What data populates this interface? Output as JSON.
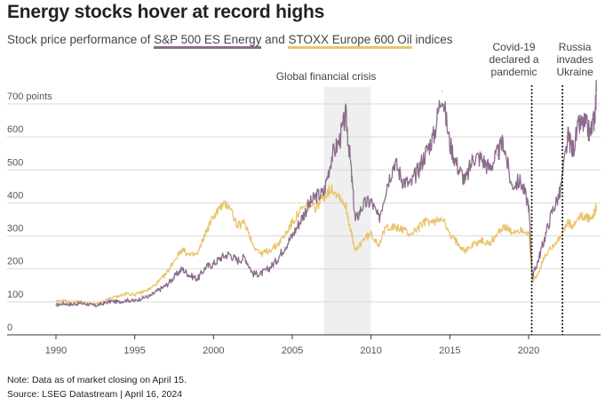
{
  "title": "Energy stocks hover at record highs",
  "subtitle": {
    "prefix": "Stock price performance of ",
    "series1": "S&P 500 ES Energy",
    "middle": " and ",
    "series2": "STOXX Europe 600 Oil",
    "suffix": " indices"
  },
  "colors": {
    "series1": "#8b6c8c",
    "series2": "#e9c46a",
    "shade": "#efefef",
    "grid": "#d9d9d9",
    "axis": "#333333"
  },
  "footer": {
    "note": "Note: Data as of market closing on April 15.",
    "source": "Source: LSEG Datastream | April 16, 2024"
  },
  "chart_data": {
    "type": "line",
    "title": "Energy stocks hover at record highs",
    "xlabel": "",
    "ylabel": "points",
    "xlim": [
      1989,
      2024.6
    ],
    "ylim": [
      0,
      700
    ],
    "grid": true,
    "y_ticks": [
      {
        "value": 0,
        "label": "0"
      },
      {
        "value": 100,
        "label": "100"
      },
      {
        "value": 200,
        "label": "200"
      },
      {
        "value": 300,
        "label": "300"
      },
      {
        "value": 400,
        "label": "400"
      },
      {
        "value": 500,
        "label": "500"
      },
      {
        "value": 600,
        "label": "600"
      },
      {
        "value": 700,
        "label": "700 points"
      }
    ],
    "x_ticks": [
      {
        "value": 1990,
        "label": "1990"
      },
      {
        "value": 1995,
        "label": "1995"
      },
      {
        "value": 2000,
        "label": "2000"
      },
      {
        "value": 2005,
        "label": "2005"
      },
      {
        "value": 2010,
        "label": "2010"
      },
      {
        "value": 2015,
        "label": "2015"
      },
      {
        "value": 2020,
        "label": "2020"
      }
    ],
    "series": [
      {
        "name": "S&P 500 ES Energy",
        "points": [
          [
            1990.0,
            90
          ],
          [
            1990.5,
            95
          ],
          [
            1991.0,
            92
          ],
          [
            1991.5,
            96
          ],
          [
            1992.0,
            93
          ],
          [
            1992.5,
            88
          ],
          [
            1993.0,
            95
          ],
          [
            1993.5,
            102
          ],
          [
            1994.0,
            100
          ],
          [
            1994.5,
            105
          ],
          [
            1995.0,
            103
          ],
          [
            1995.5,
            112
          ],
          [
            1996.0,
            118
          ],
          [
            1996.5,
            135
          ],
          [
            1997.0,
            150
          ],
          [
            1997.5,
            175
          ],
          [
            1998.0,
            200
          ],
          [
            1998.5,
            180
          ],
          [
            1999.0,
            170
          ],
          [
            1999.5,
            205
          ],
          [
            2000.0,
            215
          ],
          [
            2000.5,
            235
          ],
          [
            2001.0,
            245
          ],
          [
            2001.5,
            225
          ],
          [
            2002.0,
            235
          ],
          [
            2002.5,
            185
          ],
          [
            2003.0,
            185
          ],
          [
            2003.5,
            200
          ],
          [
            2004.0,
            225
          ],
          [
            2004.5,
            265
          ],
          [
            2005.0,
            300
          ],
          [
            2005.5,
            345
          ],
          [
            2006.0,
            390
          ],
          [
            2006.5,
            420
          ],
          [
            2007.0,
            430
          ],
          [
            2007.5,
            540
          ],
          [
            2008.0,
            590
          ],
          [
            2008.4,
            665
          ],
          [
            2008.7,
            520
          ],
          [
            2009.0,
            345
          ],
          [
            2009.5,
            395
          ],
          [
            2010.0,
            405
          ],
          [
            2010.5,
            350
          ],
          [
            2011.0,
            455
          ],
          [
            2011.5,
            525
          ],
          [
            2012.0,
            470
          ],
          [
            2012.5,
            455
          ],
          [
            2013.0,
            500
          ],
          [
            2013.5,
            555
          ],
          [
            2014.0,
            605
          ],
          [
            2014.5,
            738
          ],
          [
            2015.0,
            580
          ],
          [
            2015.5,
            510
          ],
          [
            2016.0,
            465
          ],
          [
            2016.5,
            540
          ],
          [
            2017.0,
            535
          ],
          [
            2017.5,
            505
          ],
          [
            2018.0,
            545
          ],
          [
            2018.4,
            585
          ],
          [
            2018.9,
            455
          ],
          [
            2019.5,
            465
          ],
          [
            2020.0,
            395
          ],
          [
            2020.25,
            175
          ],
          [
            2020.6,
            225
          ],
          [
            2021.0,
            290
          ],
          [
            2021.5,
            375
          ],
          [
            2022.0,
            430
          ],
          [
            2022.5,
            600
          ],
          [
            2022.8,
            560
          ],
          [
            2023.2,
            635
          ],
          [
            2023.6,
            640
          ],
          [
            2023.9,
            610
          ],
          [
            2024.2,
            660
          ],
          [
            2024.3,
            740
          ]
        ]
      },
      {
        "name": "STOXX Europe 600 Oil",
        "points": [
          [
            1990.0,
            100
          ],
          [
            1990.5,
            104
          ],
          [
            1991.0,
            98
          ],
          [
            1991.5,
            102
          ],
          [
            1992.0,
            96
          ],
          [
            1992.5,
            92
          ],
          [
            1993.0,
            100
          ],
          [
            1993.5,
            112
          ],
          [
            1994.0,
            118
          ],
          [
            1994.5,
            125
          ],
          [
            1995.0,
            122
          ],
          [
            1995.5,
            130
          ],
          [
            1996.0,
            140
          ],
          [
            1996.5,
            160
          ],
          [
            1997.0,
            185
          ],
          [
            1997.5,
            225
          ],
          [
            1998.0,
            260
          ],
          [
            1998.5,
            240
          ],
          [
            1999.0,
            245
          ],
          [
            1999.5,
            310
          ],
          [
            2000.0,
            360
          ],
          [
            2000.5,
            390
          ],
          [
            2001.0,
            395
          ],
          [
            2001.5,
            330
          ],
          [
            2002.0,
            340
          ],
          [
            2002.5,
            275
          ],
          [
            2003.0,
            245
          ],
          [
            2003.5,
            255
          ],
          [
            2004.0,
            270
          ],
          [
            2004.5,
            300
          ],
          [
            2005.0,
            340
          ],
          [
            2005.5,
            375
          ],
          [
            2006.0,
            395
          ],
          [
            2006.5,
            385
          ],
          [
            2007.0,
            420
          ],
          [
            2007.5,
            445
          ],
          [
            2008.0,
            420
          ],
          [
            2008.4,
            390
          ],
          [
            2008.7,
            320
          ],
          [
            2009.0,
            250
          ],
          [
            2009.5,
            290
          ],
          [
            2010.0,
            305
          ],
          [
            2010.5,
            275
          ],
          [
            2011.0,
            330
          ],
          [
            2011.5,
            325
          ],
          [
            2012.0,
            320
          ],
          [
            2012.5,
            305
          ],
          [
            2013.0,
            325
          ],
          [
            2013.5,
            345
          ],
          [
            2014.0,
            340
          ],
          [
            2014.5,
            360
          ],
          [
            2015.0,
            300
          ],
          [
            2015.5,
            280
          ],
          [
            2016.0,
            255
          ],
          [
            2016.5,
            275
          ],
          [
            2017.0,
            285
          ],
          [
            2017.5,
            275
          ],
          [
            2018.0,
            305
          ],
          [
            2018.4,
            330
          ],
          [
            2018.9,
            310
          ],
          [
            2019.5,
            320
          ],
          [
            2020.0,
            310
          ],
          [
            2020.25,
            160
          ],
          [
            2020.6,
            185
          ],
          [
            2021.0,
            235
          ],
          [
            2021.5,
            270
          ],
          [
            2022.0,
            295
          ],
          [
            2022.5,
            340
          ],
          [
            2022.8,
            325
          ],
          [
            2023.2,
            355
          ],
          [
            2023.6,
            360
          ],
          [
            2023.9,
            350
          ],
          [
            2024.2,
            370
          ],
          [
            2024.3,
            390
          ]
        ]
      }
    ],
    "annotations": [
      {
        "type": "shaded_range",
        "x_start": 2007.0,
        "x_end": 2010.0,
        "label": "Global financial crisis"
      },
      {
        "type": "vline",
        "x": 2020.2,
        "lines": [
          "Covid-19",
          "declared a",
          "pandemic"
        ]
      },
      {
        "type": "vline",
        "x": 2022.15,
        "lines": [
          "Russia",
          "invades",
          "Ukraine"
        ]
      }
    ]
  }
}
